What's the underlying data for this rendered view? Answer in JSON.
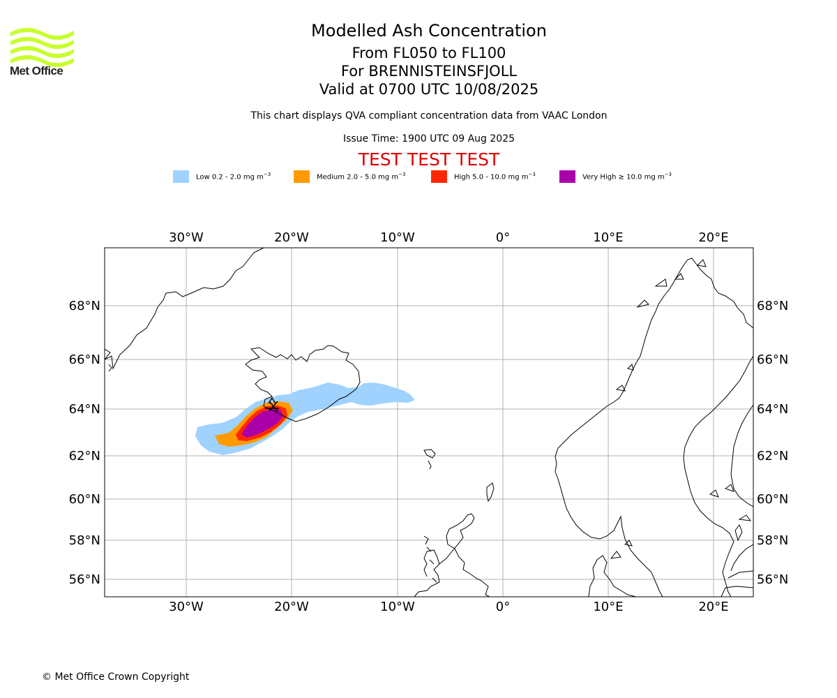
{
  "header": {
    "logo_text": "Met Office",
    "title": "Modelled Ash Concentration",
    "levels": "From FL050 to FL100",
    "volcano": "For BRENNISTEINSFJOLL",
    "valid": "Valid at 0700 UTC 10/08/2025",
    "note": "This chart displays QVA compliant concentration data from VAAC London",
    "issue": "Issue Time: 1900 UTC 09 Aug 2025",
    "test": "TEST TEST TEST"
  },
  "legend": [
    {
      "label": "Low 0.2 - 2.0 mg m",
      "color": "#a0d2ff"
    },
    {
      "label": "Medium 2.0 - 5.0 mg m",
      "color": "#ff9a00"
    },
    {
      "label": "High 5.0 - 10.0 mg m",
      "color": "#ff2800"
    },
    {
      "label": "Very High  ≥  10.0 mg m",
      "color": "#aa00aa"
    }
  ],
  "legend_unit_sup": "−3",
  "map": {
    "lon_labels": [
      "30°W",
      "20°W",
      "10°W",
      "0°",
      "10°E",
      "20°E"
    ],
    "lat_labels": [
      "68°N",
      "66°N",
      "64°N",
      "62°N",
      "60°N",
      "58°N",
      "56°N"
    ],
    "gridline_color": "#b0b0b0"
  },
  "footer": {
    "copyright": "© Met Office Crown Copyright"
  }
}
